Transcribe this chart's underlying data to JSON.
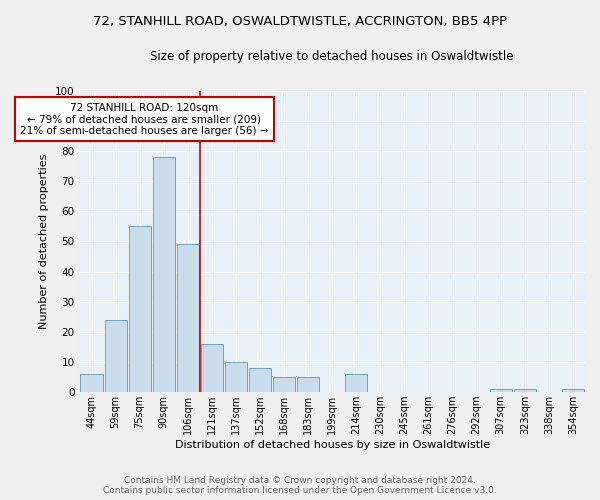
{
  "title": "72, STANHILL ROAD, OSWALDTWISTLE, ACCRINGTON, BB5 4PP",
  "subtitle": "Size of property relative to detached houses in Oswaldtwistle",
  "xlabel": "Distribution of detached houses by size in Oswaldtwistle",
  "ylabel": "Number of detached properties",
  "categories": [
    "44sqm",
    "59sqm",
    "75sqm",
    "90sqm",
    "106sqm",
    "121sqm",
    "137sqm",
    "152sqm",
    "168sqm",
    "183sqm",
    "199sqm",
    "214sqm",
    "230sqm",
    "245sqm",
    "261sqm",
    "276sqm",
    "292sqm",
    "307sqm",
    "323sqm",
    "338sqm",
    "354sqm"
  ],
  "values": [
    6,
    24,
    55,
    78,
    49,
    16,
    10,
    8,
    5,
    5,
    0,
    6,
    0,
    0,
    0,
    0,
    0,
    1,
    1,
    0,
    1
  ],
  "bar_color": "#c9dcea",
  "bar_edge_color": "#5a9ab8",
  "background_color": "#e8f0f8",
  "grid_color": "#ffffff",
  "red_line_index": 5,
  "annotation_line1": "72 STANHILL ROAD: 120sqm",
  "annotation_line2": "← 79% of detached houses are smaller (209)",
  "annotation_line3": "21% of semi-detached houses are larger (56) →",
  "annotation_box_color": "#ffffff",
  "annotation_box_edge": "#cc0000",
  "ylim": [
    0,
    100
  ],
  "yticks": [
    0,
    10,
    20,
    30,
    40,
    50,
    60,
    70,
    80,
    90,
    100
  ],
  "footer_line1": "Contains HM Land Registry data © Crown copyright and database right 2024.",
  "footer_line2": "Contains public sector information licensed under the Open Government Licence v3.0.",
  "fig_width": 6.0,
  "fig_height": 5.0,
  "title_fontsize": 9.5,
  "subtitle_fontsize": 8.5,
  "ylabel_fontsize": 8,
  "xlabel_fontsize": 8,
  "tick_fontsize": 7,
  "annotation_fontsize": 7.5,
  "footer_fontsize": 6.5
}
